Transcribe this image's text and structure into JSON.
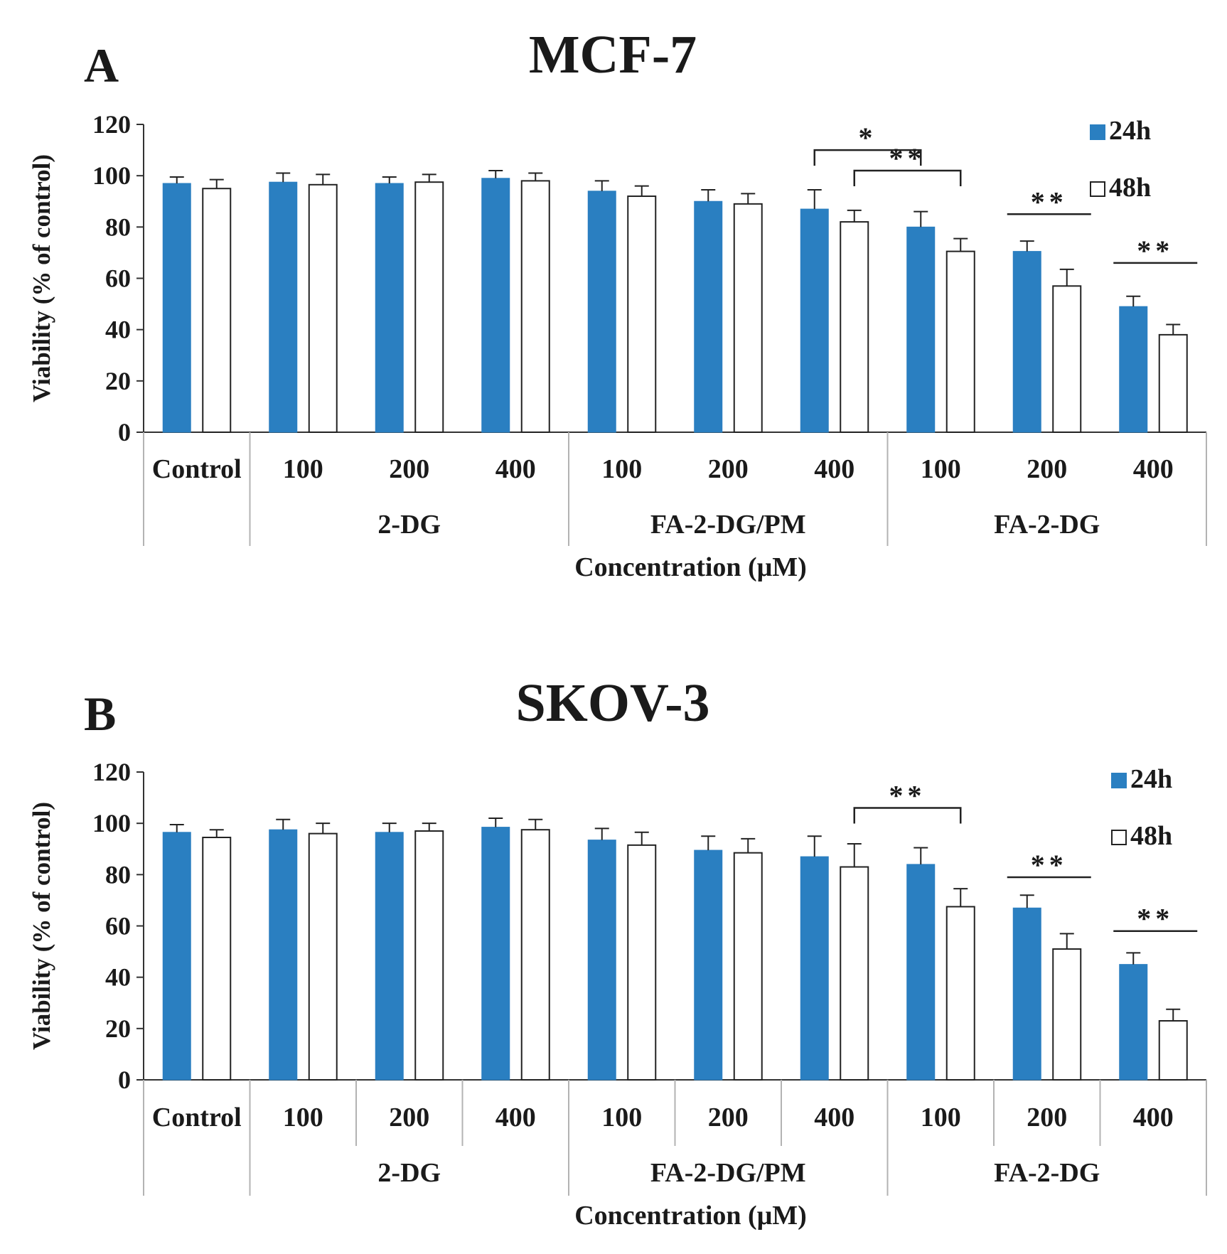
{
  "chart_data": [
    {
      "type": "bar",
      "panel_label": "A",
      "title": "MCF-7",
      "ylabel": "Viability  (% of control)",
      "xlabel": "Concentration (μM)",
      "ylim": [
        0,
        120
      ],
      "yticks": [
        0,
        20,
        40,
        60,
        80,
        100,
        120
      ],
      "categories": [
        "Control",
        "100",
        "200",
        "400",
        "100",
        "200",
        "400",
        "100",
        "200",
        "400"
      ],
      "groups": [
        {
          "label": "",
          "start": 0,
          "end": 0
        },
        {
          "label": "2-DG",
          "start": 1,
          "end": 3
        },
        {
          "label": "FA-2-DG/PM",
          "start": 4,
          "end": 6
        },
        {
          "label": "FA-2-DG",
          "start": 7,
          "end": 9
        }
      ],
      "series": [
        {
          "name": "24h",
          "values": [
            97,
            97.5,
            97,
            99,
            94,
            90,
            87,
            80,
            70.5,
            49
          ],
          "errors": [
            2.5,
            3.5,
            2.5,
            3,
            4,
            4.5,
            7.5,
            6,
            4,
            4
          ]
        },
        {
          "name": "48h",
          "values": [
            95,
            96.5,
            97.5,
            98,
            92,
            89,
            82,
            70.5,
            57,
            38
          ],
          "errors": [
            3.5,
            4,
            3,
            3,
            4,
            4,
            4.5,
            5,
            6.5,
            4
          ]
        }
      ],
      "legend_position": "top-right",
      "annotations": [
        {
          "text": "*",
          "type": "bracket",
          "from": {
            "cat": 6,
            "series": 0
          },
          "to": {
            "cat": 7,
            "series": 0
          },
          "y": 110
        },
        {
          "text": "**",
          "type": "bracket",
          "from": {
            "cat": 6,
            "series": 1
          },
          "to": {
            "cat": 7,
            "series": 1
          },
          "y": 102
        },
        {
          "text": "**",
          "type": "line",
          "cat": 8,
          "y": 85
        },
        {
          "text": "**",
          "type": "line",
          "cat": 9,
          "y": 66
        }
      ]
    },
    {
      "type": "bar",
      "panel_label": "B",
      "title": "SKOV-3",
      "ylabel": "Viability  (% of control)",
      "xlabel": "Concentration (μM)",
      "ylim": [
        0,
        120
      ],
      "yticks": [
        0,
        20,
        40,
        60,
        80,
        100,
        120
      ],
      "categories": [
        "Control",
        "100",
        "200",
        "400",
        "100",
        "200",
        "400",
        "100",
        "200",
        "400"
      ],
      "groups": [
        {
          "label": "",
          "start": 0,
          "end": 0
        },
        {
          "label": "2-DG",
          "start": 1,
          "end": 3
        },
        {
          "label": "FA-2-DG/PM",
          "start": 4,
          "end": 6
        },
        {
          "label": "FA-2-DG",
          "start": 7,
          "end": 9
        }
      ],
      "series": [
        {
          "name": "24h",
          "values": [
            96.5,
            97.5,
            96.5,
            98.5,
            93.5,
            89.5,
            87,
            84,
            67,
            45
          ],
          "errors": [
            3,
            4,
            3.5,
            3.5,
            4.5,
            5.5,
            8,
            6.5,
            5,
            4.5
          ]
        },
        {
          "name": "48h",
          "values": [
            94.5,
            96,
            97,
            97.5,
            91.5,
            88.5,
            83,
            67.5,
            51,
            23
          ],
          "errors": [
            3,
            4,
            3,
            4,
            5,
            5.5,
            9,
            7,
            6,
            4.5
          ]
        }
      ],
      "legend_position": "top-right",
      "annotations": [
        {
          "text": "**",
          "type": "bracket",
          "from": {
            "cat": 6,
            "series": 1
          },
          "to": {
            "cat": 7,
            "series": 1
          },
          "y": 106
        },
        {
          "text": "**",
          "type": "line",
          "cat": 8,
          "y": 79
        },
        {
          "text": "**",
          "type": "line",
          "cat": 9,
          "y": 58
        }
      ]
    }
  ],
  "colors": {
    "series_24h": "#2a7fc1",
    "series_48h": "#ffffff",
    "axis": "#333333",
    "grid_divider": "#b3b3b3"
  }
}
